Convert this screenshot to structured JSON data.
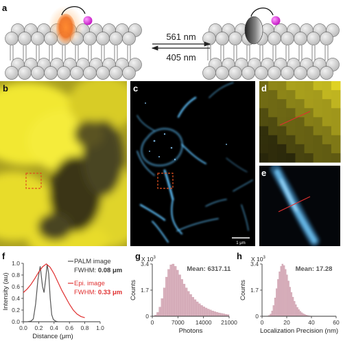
{
  "panels": {
    "a": "a",
    "b": "b",
    "c": "c",
    "d": "d",
    "e": "e",
    "f": "f",
    "g": "g",
    "h": "h"
  },
  "switching": {
    "forward_label": "561 nm",
    "reverse_label": "405 nm"
  },
  "scale_bar_label": "1 μm",
  "colors": {
    "membrane_bead": "#c8c8c8",
    "fluorophore_on": "#f07020",
    "fluorophore_off": "#555555",
    "ligand": "#e020e0",
    "widefield": "#f0e030",
    "palm": "#40a8e8",
    "palm_trace": "#555555",
    "epi_trace": "#e03030",
    "histogram_fill": "#d8b0bc"
  },
  "profile": {
    "ylabel": "Intensity (au)",
    "xlabel": "Distance (μm)",
    "x_ticks": [
      "0.0",
      "0.2",
      "0.4",
      "0.6",
      "0.8",
      "1.0"
    ],
    "y_ticks": [
      "0.0",
      "0.2",
      "0.4",
      "0.6",
      "0.8",
      "1.0"
    ],
    "palm_legend": "PALM image",
    "palm_fwhm_label": "FWHM: ",
    "palm_fwhm_value": "0.08 μm",
    "epi_legend": "Epi. image",
    "epi_fwhm_label": "FWHM: ",
    "epi_fwhm_value": "0.33 μm"
  },
  "chart_data": [
    {
      "type": "line",
      "xlabel": "Distance (μm)",
      "ylabel": "Intensity (au)",
      "xlim": [
        0,
        1.0
      ],
      "ylim": [
        0,
        1.0
      ],
      "series": [
        {
          "name": "PALM image",
          "x": [
            0.0,
            0.05,
            0.1,
            0.13,
            0.16,
            0.19,
            0.22,
            0.25,
            0.27,
            0.29,
            0.31,
            0.33,
            0.35,
            0.37,
            0.39,
            0.42,
            0.45
          ],
          "y": [
            0.0,
            0.0,
            0.01,
            0.05,
            0.3,
            0.72,
            0.95,
            0.6,
            0.5,
            0.72,
            0.98,
            0.82,
            0.4,
            0.12,
            0.04,
            0.01,
            0.0
          ]
        },
        {
          "name": "Epi. image",
          "x": [
            0.0,
            0.05,
            0.1,
            0.15,
            0.2,
            0.25,
            0.3,
            0.35,
            0.4,
            0.45,
            0.5,
            0.55,
            0.6,
            0.65,
            0.7,
            0.75,
            0.8
          ],
          "y": [
            0.5,
            0.56,
            0.64,
            0.74,
            0.85,
            0.94,
            0.99,
            0.93,
            0.82,
            0.68,
            0.54,
            0.42,
            0.3,
            0.2,
            0.13,
            0.09,
            0.07
          ]
        }
      ]
    },
    {
      "type": "bar",
      "xlabel": "Photons",
      "ylabel": "Counts",
      "y_multiplier_label": "X 10",
      "y_multiplier_exp": "3",
      "mean_label": "Mean: 6317.11",
      "x_ticks": [
        "0",
        "7000",
        "14000",
        "21000"
      ],
      "y_ticks": [
        "0",
        "1.7",
        "3.4"
      ],
      "xlim": [
        0,
        21000
      ],
      "ylim": [
        0,
        3.4
      ],
      "bin_start": 0,
      "bin_width": 600,
      "values": [
        0.02,
        0.08,
        0.25,
        0.6,
        1.15,
        1.85,
        2.55,
        3.05,
        3.35,
        3.4,
        3.25,
        3.0,
        2.7,
        2.4,
        2.1,
        1.85,
        1.62,
        1.42,
        1.24,
        1.08,
        0.94,
        0.82,
        0.71,
        0.62,
        0.54,
        0.47,
        0.41,
        0.35,
        0.3,
        0.26,
        0.22,
        0.19,
        0.16,
        0.13,
        0.11
      ]
    },
    {
      "type": "bar",
      "xlabel": "Localization Precision (nm)",
      "ylabel": "Counts",
      "y_multiplier_label": "X 10",
      "y_multiplier_exp": "3",
      "mean_label": "Mean: 17.28",
      "x_ticks": [
        "0",
        "20",
        "40",
        "60"
      ],
      "y_ticks": [
        "0",
        "1.7",
        "3.4"
      ],
      "xlim": [
        0,
        60
      ],
      "ylim": [
        0,
        3.4
      ],
      "bin_start": 4,
      "bin_width": 1.2,
      "values": [
        0.02,
        0.06,
        0.15,
        0.35,
        0.7,
        1.2,
        1.8,
        2.4,
        2.9,
        3.25,
        3.4,
        3.3,
        3.05,
        2.7,
        2.3,
        1.9,
        1.55,
        1.25,
        0.98,
        0.76,
        0.58,
        0.44,
        0.33,
        0.24,
        0.17,
        0.12,
        0.08,
        0.05,
        0.03,
        0.02
      ]
    }
  ]
}
